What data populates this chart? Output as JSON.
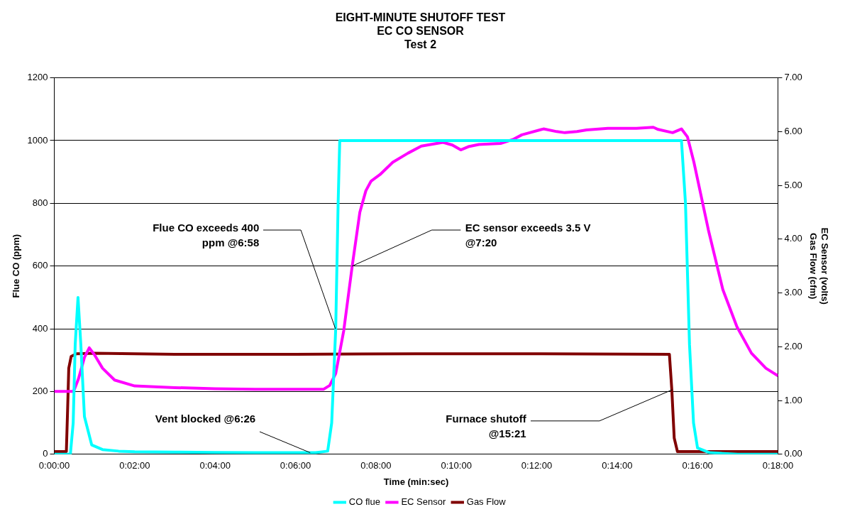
{
  "chart_data": {
    "type": "line",
    "title": "EIGHT-MINUTE SHUTOFF TEST\nEC CO SENSOR\nTest 2",
    "xlabel": "Time (min:sec)",
    "ylabel": "Flue CO (ppm)",
    "y2label": "EC Sensor (volts)\nGas Flow (cfm)",
    "xlim": [
      0,
      18
    ],
    "xticks": [
      {
        "value": 0,
        "label": "0:00:00"
      },
      {
        "value": 2,
        "label": "0:02:00"
      },
      {
        "value": 4,
        "label": "0:04:00"
      },
      {
        "value": 6,
        "label": "0:06:00"
      },
      {
        "value": 8,
        "label": "0:08:00"
      },
      {
        "value": 10,
        "label": "0:10:00"
      },
      {
        "value": 12,
        "label": "0:12:00"
      },
      {
        "value": 14,
        "label": "0:14:00"
      },
      {
        "value": 16,
        "label": "0:16:00"
      },
      {
        "value": 18,
        "label": "0:18:00"
      }
    ],
    "ylim": [
      0,
      1200
    ],
    "yticks": [
      0,
      200,
      400,
      600,
      800,
      1000,
      1200
    ],
    "y2lim": [
      0,
      7
    ],
    "y2ticks": [
      {
        "value": 0,
        "label": "0.00"
      },
      {
        "value": 1,
        "label": "1.00"
      },
      {
        "value": 2,
        "label": "2.00"
      },
      {
        "value": 3,
        "label": "3.00"
      },
      {
        "value": 4,
        "label": "4.00"
      },
      {
        "value": 5,
        "label": "5.00"
      },
      {
        "value": 6,
        "label": "6.00"
      },
      {
        "value": 7,
        "label": "7.00"
      }
    ],
    "grid": "y",
    "legend": "bottom",
    "marker": "none",
    "line_style": "solid",
    "series": [
      {
        "name": "CO flue",
        "color": "#00ffff",
        "x": [
          0,
          0.4,
          0.47,
          0.52,
          0.59,
          0.66,
          0.75,
          0.93,
          1.2,
          1.6,
          2,
          3,
          4,
          5,
          6,
          6.5,
          6.8,
          6.9,
          7.0,
          7.06,
          7.1,
          15.6,
          15.7,
          15.8,
          15.9,
          16,
          16.3,
          17,
          18
        ],
        "values": [
          0,
          0,
          100,
          350,
          500,
          350,
          120,
          30,
          15,
          10,
          8,
          7,
          6,
          5,
          5,
          5,
          10,
          100,
          400,
          800,
          1000,
          1000,
          800,
          350,
          100,
          20,
          5,
          0,
          0
        ]
      },
      {
        "name": "EC Sensor",
        "color": "#ff00ff",
        "axis": "y2",
        "x": [
          0,
          0.48,
          0.6,
          0.75,
          0.87,
          1,
          1.2,
          1.5,
          2,
          3,
          4,
          5,
          6,
          6.7,
          6.85,
          7,
          7.2,
          7.41,
          7.6,
          7.75,
          7.88,
          8.1,
          8.42,
          8.8,
          9.13,
          9.67,
          9.9,
          10.11,
          10.3,
          10.56,
          11.1,
          11.4,
          11.63,
          12.17,
          12.5,
          12.7,
          13,
          13.24,
          13.77,
          14.48,
          14.9,
          15.02,
          15.38,
          15.6,
          15.75,
          15.91,
          16.27,
          16.63,
          16.98,
          17.34,
          17.7,
          18
        ],
        "values": [
          1.17,
          1.17,
          1.4,
          1.8,
          1.98,
          1.85,
          1.6,
          1.38,
          1.27,
          1.24,
          1.22,
          1.21,
          1.21,
          1.21,
          1.28,
          1.5,
          2.3,
          3.5,
          4.5,
          4.9,
          5.08,
          5.2,
          5.43,
          5.6,
          5.73,
          5.8,
          5.75,
          5.66,
          5.72,
          5.76,
          5.78,
          5.85,
          5.94,
          6.05,
          6,
          5.98,
          6,
          6.03,
          6.06,
          6.06,
          6.08,
          6.04,
          5.98,
          6.05,
          5.9,
          5.43,
          4.17,
          3.06,
          2.37,
          1.88,
          1.6,
          1.46
        ]
      },
      {
        "name": "Gas Flow",
        "color": "#800000",
        "axis": "y2",
        "x": [
          0,
          0.3,
          0.33,
          0.36,
          0.42,
          0.55,
          1,
          3,
          6,
          9,
          12,
          15.3,
          15.36,
          15.42,
          15.5,
          18
        ],
        "values": [
          0.05,
          0.05,
          0.8,
          1.6,
          1.82,
          1.87,
          1.88,
          1.86,
          1.86,
          1.87,
          1.87,
          1.86,
          1.2,
          0.3,
          0.05,
          0.05
        ]
      }
    ],
    "annotations": [
      {
        "text": "Flue CO exceeds 400\nppm @6:58",
        "x": 7.0,
        "y": 400
      },
      {
        "text": "EC sensor exceeds 3.5 V\n@7:20",
        "x": 7.41,
        "y": 600
      },
      {
        "text": "Vent blocked @6:26",
        "x": 6.37,
        "y": 5
      },
      {
        "text": "Furnace shutoff\n@15:21",
        "x": 15.36,
        "y": 206
      }
    ]
  }
}
